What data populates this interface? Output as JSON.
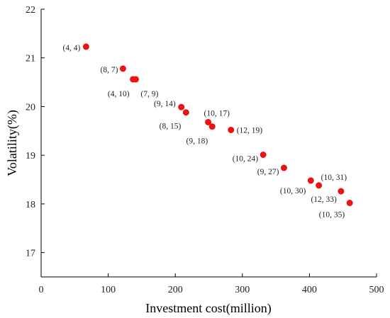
{
  "chart_data": {
    "type": "scatter",
    "xlabel": "Investment cost(million)",
    "ylabel": "Volatility(%)",
    "xlim": [
      0,
      500
    ],
    "ylim": [
      16.5,
      22
    ],
    "xticks": [
      0,
      100,
      200,
      300,
      400,
      500
    ],
    "yticks": [
      17,
      18,
      19,
      20,
      21,
      22
    ],
    "grid": false,
    "marker_color": "#ee1111",
    "points": [
      {
        "x": 67,
        "y": 21.23,
        "label": "(4,  4)"
      },
      {
        "x": 122,
        "y": 20.78,
        "label": "(8,  7)"
      },
      {
        "x": 137,
        "y": 20.56,
        "label": "(4,  10)"
      },
      {
        "x": 141,
        "y": 20.56,
        "label": "(7,  9)"
      },
      {
        "x": 209,
        "y": 19.99,
        "label": "(9,  14)"
      },
      {
        "x": 216,
        "y": 19.88,
        "label": "(8,  15)"
      },
      {
        "x": 249,
        "y": 19.68,
        "label": "(10,  17)"
      },
      {
        "x": 255,
        "y": 19.59,
        "label": "(9,  18)"
      },
      {
        "x": 283,
        "y": 19.52,
        "label": "(12,  19)"
      },
      {
        "x": 331,
        "y": 19.01,
        "label": "(10,  24)"
      },
      {
        "x": 362,
        "y": 18.74,
        "label": "(9,  27)"
      },
      {
        "x": 402,
        "y": 18.48,
        "label": "(10,  30)"
      },
      {
        "x": 414,
        "y": 18.38,
        "label": "(10,  31)"
      },
      {
        "x": 447,
        "y": 18.26,
        "label": "(12,  33)"
      },
      {
        "x": 460,
        "y": 18.02,
        "label": "(10,  35)"
      }
    ]
  }
}
